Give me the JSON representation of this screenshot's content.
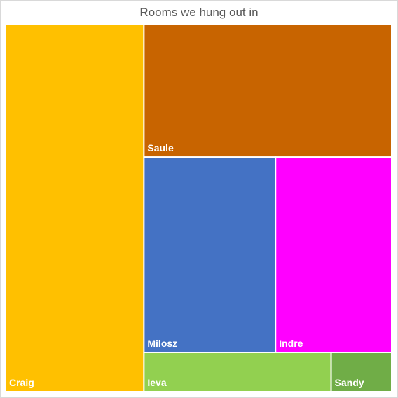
{
  "chart_data": {
    "type": "treemap",
    "title": "Rooms we hung out in",
    "items": [
      {
        "name": "Craig",
        "value": 23.5,
        "color": "#FFC000"
      },
      {
        "name": "Saule",
        "value": 15.2,
        "color": "#C86400"
      },
      {
        "name": "Milosz",
        "value": 11.9,
        "color": "#4472C4"
      },
      {
        "name": "Indre",
        "value": 10.5,
        "color": "#FF00FF"
      },
      {
        "name": "Ieva",
        "value": 3.4,
        "color": "#92D050"
      },
      {
        "name": "Sandy",
        "value": 1.1,
        "color": "#70AD47"
      }
    ]
  }
}
